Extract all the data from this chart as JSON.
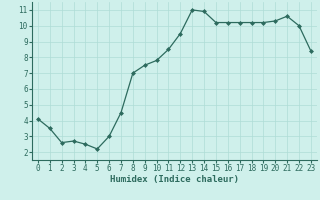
{
  "x": [
    0,
    1,
    2,
    3,
    4,
    5,
    6,
    7,
    8,
    9,
    10,
    11,
    12,
    13,
    14,
    15,
    16,
    17,
    18,
    19,
    20,
    21,
    22,
    23
  ],
  "y": [
    4.1,
    3.5,
    2.6,
    2.7,
    2.5,
    2.2,
    3.0,
    4.5,
    7.0,
    7.5,
    7.8,
    8.5,
    9.5,
    11.0,
    10.9,
    10.2,
    10.2,
    10.2,
    10.2,
    10.2,
    10.3,
    10.6,
    10.0,
    8.4
  ],
  "xlim": [
    -0.5,
    23.5
  ],
  "ylim": [
    1.5,
    11.5
  ],
  "xticks": [
    0,
    1,
    2,
    3,
    4,
    5,
    6,
    7,
    8,
    9,
    10,
    11,
    12,
    13,
    14,
    15,
    16,
    17,
    18,
    19,
    20,
    21,
    22,
    23
  ],
  "yticks": [
    2,
    3,
    4,
    5,
    6,
    7,
    8,
    9,
    10,
    11
  ],
  "xlabel": "Humidex (Indice chaleur)",
  "line_color": "#2d6b5e",
  "marker": "D",
  "marker_size": 2.0,
  "bg_color": "#cff0eb",
  "grid_color": "#aeddd6",
  "tick_label_color": "#2d6b5e",
  "xlabel_color": "#2d6b5e",
  "font_family": "monospace",
  "tick_fontsize": 5.5,
  "xlabel_fontsize": 6.5,
  "linewidth": 0.9
}
